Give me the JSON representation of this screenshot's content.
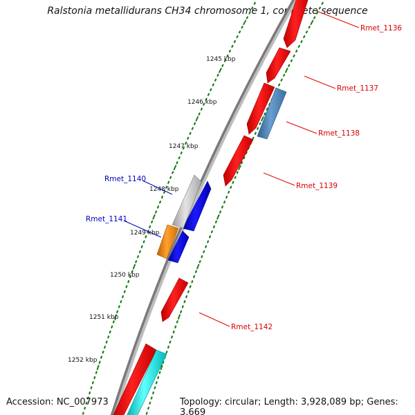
{
  "title": "Ralstonia metallidurans CH34 chromosome 1, complete sequence",
  "footer": {
    "accession": "Accession: NC_007973",
    "topology": "Topology: circular; Length: 3,928,089 bp; Genes: 3,669"
  },
  "ticks": [
    "1245 kbp",
    "1246 kbp",
    "1247 kbp",
    "1248 kbp",
    "1249 kbp",
    "1250 kbp",
    "1251 kbp",
    "1252 kbp"
  ],
  "gene_labels": [
    "Rmet_1136",
    "Rmet_1137",
    "Rmet_1138",
    "Rmet_1139",
    "Rmet_1140",
    "Rmet_1141",
    "Rmet_1142"
  ],
  "colors": {
    "forward_gene": "#ff0000",
    "reverse_gene": "#0000e6",
    "steelblue_gene": "#4a7fb5",
    "grey_gene": "#c8c8c8",
    "orange_gene": "#ff8800",
    "cyan_gene": "#00e5e5",
    "backbone": "#808080",
    "tick_dots": "#1a7a1a",
    "forward_label": "#d40000",
    "reverse_label": "#0000c0"
  }
}
